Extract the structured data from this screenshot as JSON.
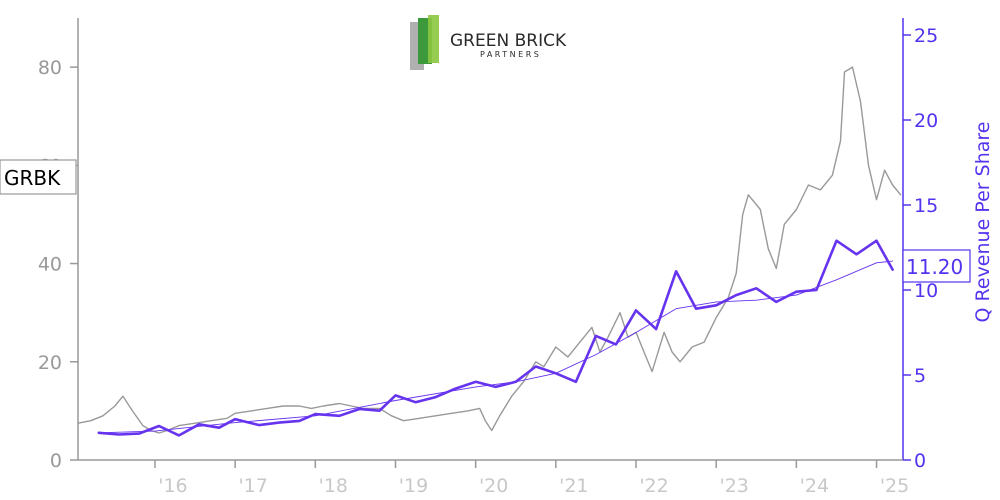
{
  "logo": {
    "name": "GREEN BRICK",
    "sub": "PARTNERS"
  },
  "ticker": "GRBK",
  "last_value_label": "11.20",
  "colors": {
    "price_line": "#999999",
    "revenue_line": "#6633ee",
    "revenue_trend": "#6633ee",
    "right_axis": "#5533ee",
    "left_axis": "#999999",
    "logo_green_dark": "#3c9a3c",
    "logo_green_light": "#8cc63f",
    "logo_gray": "#b0b0b0"
  },
  "chart_data": {
    "type": "line",
    "title": "",
    "xlabel": "",
    "ylabel_left": "",
    "ylabel_right": "Q Revenue Per Share",
    "x_ticks": [
      "'16",
      "'17",
      "'18",
      "'19",
      "'20",
      "'21",
      "'22",
      "'23",
      "'24",
      "'25"
    ],
    "x_tick_years": [
      2016,
      2017,
      2018,
      2019,
      2020,
      2021,
      2022,
      2023,
      2024,
      2025
    ],
    "xlim": [
      2015.04,
      2025.33
    ],
    "y_left_ticks": [
      0,
      20,
      40,
      60,
      80
    ],
    "y_left_lim": [
      0,
      90
    ],
    "y_right_ticks": [
      0,
      5,
      10,
      15,
      20,
      25
    ],
    "y_right_lim": [
      0,
      26
    ],
    "grid": false,
    "legend": "none",
    "series": [
      {
        "name": "GRBK",
        "axis": "left",
        "x": [
          2015.04,
          2015.2,
          2015.35,
          2015.5,
          2015.6,
          2015.72,
          2015.85,
          2015.95,
          2016.05,
          2016.15,
          2016.3,
          2016.5,
          2016.7,
          2016.9,
          2017.0,
          2017.2,
          2017.4,
          2017.6,
          2017.8,
          2017.95,
          2018.1,
          2018.3,
          2018.45,
          2018.6,
          2018.8,
          2018.95,
          2019.1,
          2019.3,
          2019.5,
          2019.7,
          2019.9,
          2020.05,
          2020.12,
          2020.2,
          2020.3,
          2020.45,
          2020.6,
          2020.75,
          2020.85,
          2021.0,
          2021.15,
          2021.3,
          2021.45,
          2021.55,
          2021.65,
          2021.8,
          2021.9,
          2022.0,
          2022.1,
          2022.2,
          2022.35,
          2022.45,
          2022.55,
          2022.7,
          2022.85,
          2023.0,
          2023.15,
          2023.25,
          2023.33,
          2023.4,
          2023.55,
          2023.65,
          2023.75,
          2023.85,
          2024.0,
          2024.15,
          2024.3,
          2024.45,
          2024.55,
          2024.6,
          2024.7,
          2024.8,
          2024.9,
          2025.0,
          2025.1,
          2025.2,
          2025.3
        ],
        "values": [
          7.5,
          8,
          9,
          11,
          13,
          10,
          7,
          6,
          5.5,
          6,
          7,
          7.5,
          8,
          8.5,
          9.5,
          10,
          10.5,
          11,
          11,
          10.5,
          11,
          11.5,
          11,
          10.5,
          10.5,
          9,
          8,
          8.5,
          9,
          9.5,
          10,
          10.5,
          8,
          6,
          9,
          13,
          16,
          20,
          19,
          23,
          21,
          24,
          27,
          22,
          25,
          30,
          25,
          26,
          22,
          18,
          26,
          22,
          20,
          23,
          24,
          29,
          33,
          38,
          50,
          54,
          51,
          43,
          39,
          48,
          51,
          56,
          55,
          58,
          65,
          79,
          80,
          73,
          60,
          53,
          59,
          56,
          54
        ]
      },
      {
        "name": "Q Revenue Per Share",
        "axis": "right",
        "x": [
          2015.3,
          2015.55,
          2015.8,
          2016.05,
          2016.3,
          2016.55,
          2016.8,
          2017.0,
          2017.3,
          2017.55,
          2017.8,
          2018.0,
          2018.3,
          2018.55,
          2018.8,
          2019.0,
          2019.25,
          2019.5,
          2019.75,
          2020.0,
          2020.25,
          2020.5,
          2020.75,
          2021.0,
          2021.25,
          2021.5,
          2021.75,
          2022.0,
          2022.25,
          2022.5,
          2022.75,
          2023.0,
          2023.25,
          2023.5,
          2023.75,
          2024.0,
          2024.25,
          2024.5,
          2024.75,
          2025.0,
          2025.2
        ],
        "values": [
          1.6,
          1.5,
          1.55,
          2.0,
          1.45,
          2.1,
          1.9,
          2.4,
          2.05,
          2.2,
          2.3,
          2.7,
          2.6,
          3.0,
          2.9,
          3.8,
          3.4,
          3.7,
          4.2,
          4.6,
          4.3,
          4.6,
          5.5,
          5.1,
          4.6,
          7.3,
          6.8,
          8.8,
          7.7,
          11.1,
          8.9,
          9.1,
          9.7,
          10.1,
          9.3,
          9.9,
          10.0,
          12.9,
          12.1,
          12.9,
          11.2
        ]
      },
      {
        "name": "Revenue Trend",
        "axis": "right",
        "x": [
          2015.3,
          2016.0,
          2017.0,
          2018.0,
          2019.0,
          2020.0,
          2020.5,
          2021.0,
          2021.5,
          2022.0,
          2022.5,
          2023.0,
          2023.5,
          2024.0,
          2024.5,
          2025.0,
          2025.2
        ],
        "values": [
          1.6,
          1.7,
          2.2,
          2.6,
          3.5,
          4.3,
          4.6,
          5.1,
          6.2,
          7.5,
          8.9,
          9.3,
          9.4,
          9.7,
          10.6,
          11.6,
          11.7
        ]
      }
    ]
  }
}
